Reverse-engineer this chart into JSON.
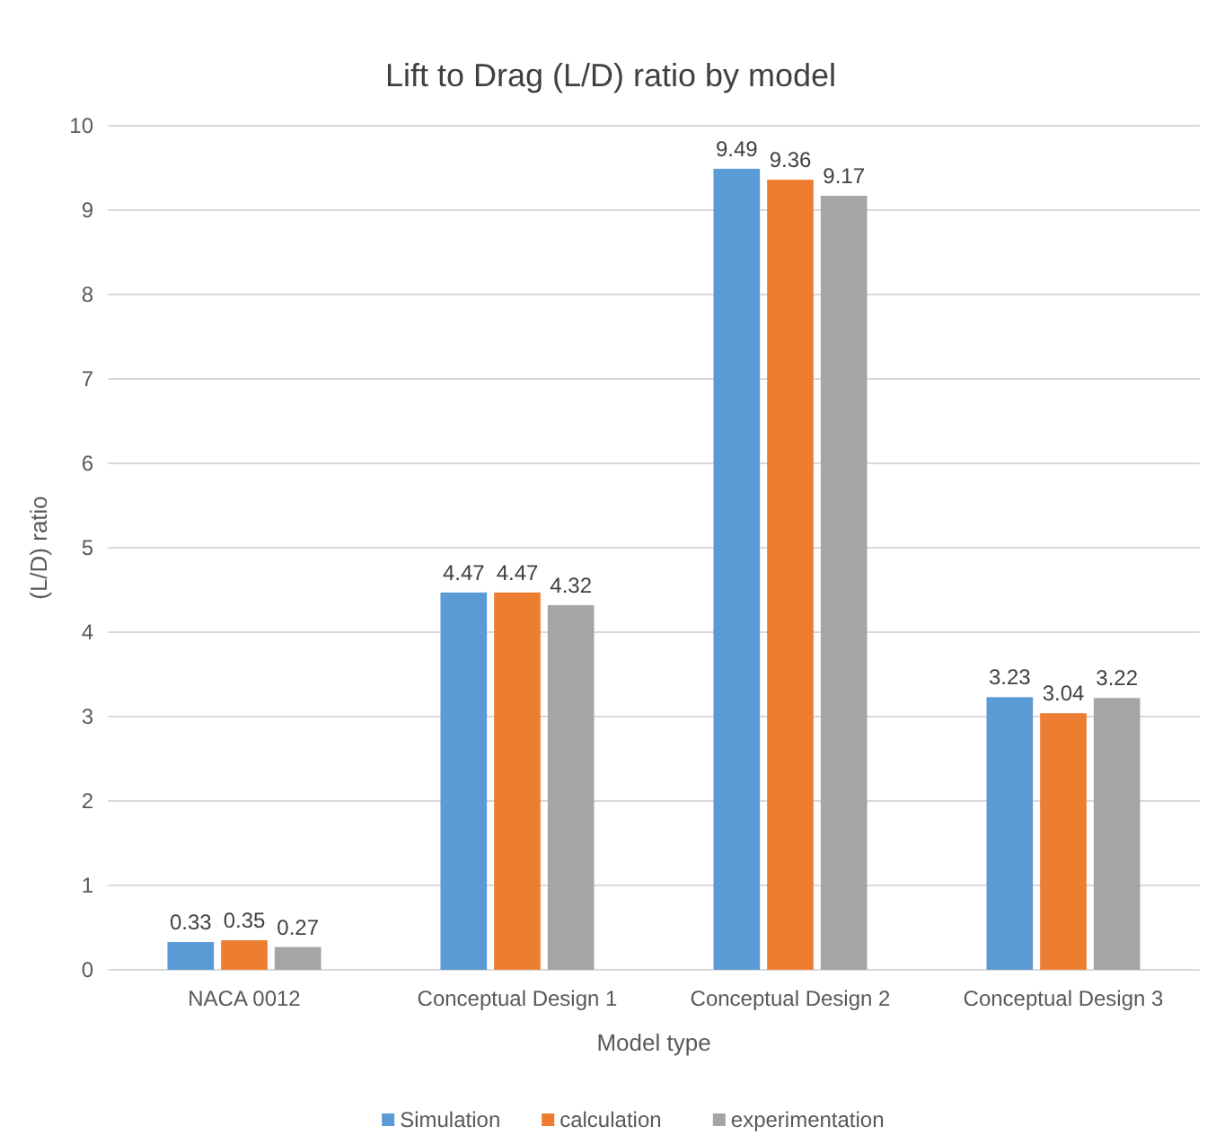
{
  "chart_data": {
    "type": "bar",
    "title": "Lift to Drag (L/D) ratio by model",
    "xlabel": "Model type",
    "ylabel": "(L/D) ratio",
    "categories": [
      "NACA 0012",
      "Conceptual Design 1",
      "Conceptual Design 2",
      "Conceptual Design 3"
    ],
    "series": [
      {
        "name": "Simulation",
        "color": "#5b9bd5",
        "values": [
          0.33,
          4.47,
          9.49,
          3.23
        ]
      },
      {
        "name": "calculation",
        "color": "#ed7d31",
        "values": [
          0.35,
          4.47,
          9.36,
          3.04
        ]
      },
      {
        "name": "experimentation",
        "color": "#a5a5a5",
        "values": [
          0.27,
          4.32,
          9.17,
          3.22
        ]
      }
    ],
    "ylim": [
      0,
      10
    ],
    "yticks": [
      0,
      1,
      2,
      3,
      4,
      5,
      6,
      7,
      8,
      9,
      10
    ],
    "grid": "y",
    "legend": "bottom",
    "data_labels": true
  }
}
